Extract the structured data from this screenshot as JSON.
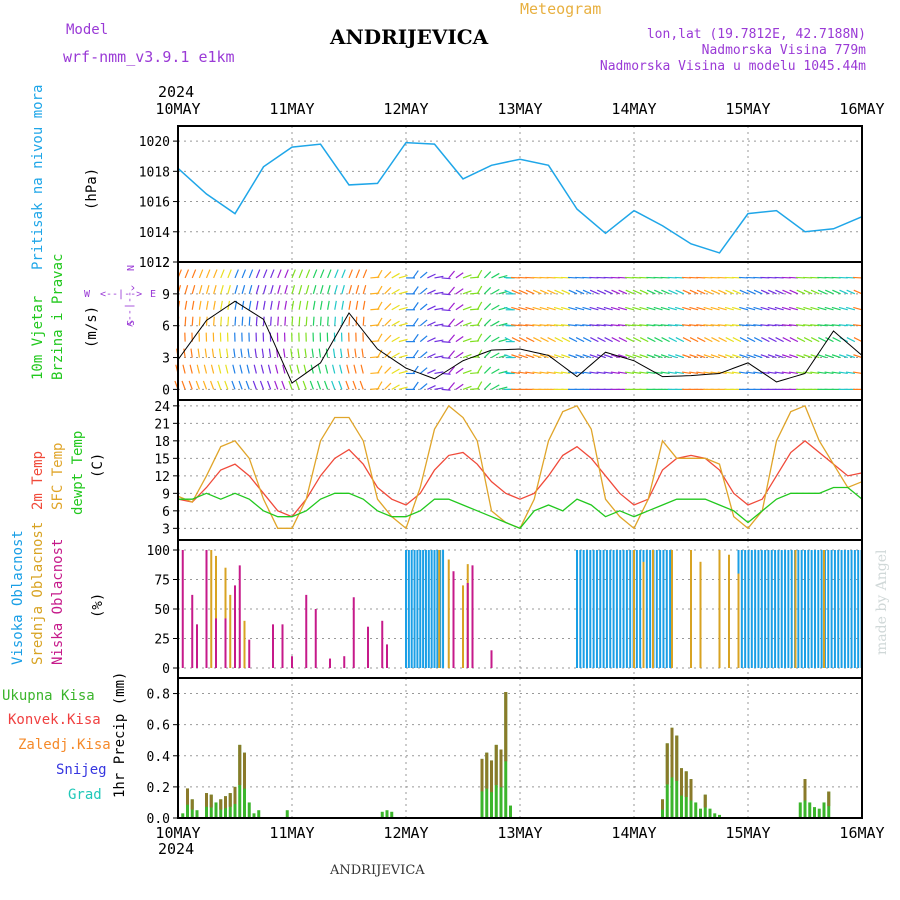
{
  "header": {
    "model_label": "Model",
    "model_name": "wrf-nmm_v3.9.1 e1km",
    "location": "ANDRIJEVICA",
    "product": "Meteogram",
    "lonlat": "lon,lat (19.7812E, 42.7188N)",
    "elevation": "Nadmorska Visina 779m",
    "model_elevation": "Nadmorska Visina u modelu 1045.44m",
    "footer_location": "ANDRIJEVICA",
    "signature": "made by Angel"
  },
  "x_axis": {
    "year": "2024",
    "days": [
      "10MAY",
      "11MAY",
      "12MAY",
      "13MAY",
      "14MAY",
      "15MAY",
      "16MAY"
    ]
  },
  "colors": {
    "pressure": "#1fa6e8",
    "wind_speed": "#000000",
    "wind_gust": "#ff2020",
    "temp_2m": "#f04a3a",
    "temp_sfc": "#e0a52a",
    "dewpoint": "#22c81e",
    "cloud_high": "#1a9fe6",
    "cloud_mid": "#d8a323",
    "cloud_low": "#c61a8a",
    "precip_total": "#3cb52c",
    "precip_conv": "#f04040",
    "precip_frozen": "#f58a2a",
    "snow": "#3636e0",
    "graupel": "#20c8b8"
  },
  "panels": {
    "pressure": {
      "labels": [
        "Pritisak na nivou mora"
      ],
      "unit": "(hPa)"
    },
    "wind": {
      "labels": [
        "10m Vjetar",
        "Brzina i Pravac"
      ],
      "unit": "(m/s)",
      "compass": [
        "W",
        "<--|-->",
        "E",
        "N",
        "^",
        "|",
        "v",
        "S"
      ]
    },
    "temp": {
      "labels": [
        "2m Temp",
        "SFC Temp",
        "dewpt Temp"
      ],
      "unit": "(C)"
    },
    "cloud": {
      "labels": [
        "Visoka Oblacnost",
        "Srednja Oblacnost",
        "Niska Oblacnost"
      ],
      "unit": "(%)"
    },
    "precip": {
      "labels": [
        "Ukupna Kisa",
        "Konvek.Kisa",
        "Zaledj.Kisa",
        "Snijeg",
        "Grad"
      ],
      "unit": "1hr Precip (mm)"
    }
  },
  "chart_data": [
    {
      "type": "line",
      "title": "",
      "ylabel": "Pritisak na nivou mora (hPa)",
      "ylim": [
        1012,
        1021
      ],
      "yticks": [
        1012,
        1014,
        1016,
        1018,
        1020
      ],
      "series": [
        {
          "name": "Pritisak na nivou mora",
          "x_hours": [
            0,
            6,
            12,
            18,
            24,
            30,
            36,
            42,
            48,
            54,
            60,
            66,
            72,
            78,
            84,
            90,
            96,
            102,
            108,
            114,
            120,
            126,
            132,
            138,
            144
          ],
          "values": [
            1018.2,
            1016.5,
            1015.2,
            1018.3,
            1019.6,
            1019.8,
            1017.1,
            1017.2,
            1019.9,
            1019.8,
            1017.5,
            1018.4,
            1018.8,
            1018.4,
            1015.5,
            1013.9,
            1015.4,
            1014.4,
            1013.2,
            1012.6,
            1015.2,
            1015.4,
            1014.0,
            1014.2,
            1015.0
          ]
        }
      ],
      "grid": true
    },
    {
      "type": "line",
      "title": "",
      "ylabel": "10m Vjetar Brzina i Pravac (m/s)",
      "ylim": [
        -1,
        12
      ],
      "yticks": [
        0,
        3,
        6,
        9,
        12
      ],
      "series": [
        {
          "name": "Brzina",
          "x_hours": [
            0,
            6,
            12,
            18,
            24,
            30,
            36,
            42,
            48,
            54,
            60,
            66,
            72,
            78,
            84,
            90,
            96,
            102,
            108,
            114,
            120,
            126,
            132,
            138,
            144
          ],
          "values": [
            2.8,
            6.5,
            8.3,
            6.6,
            0.6,
            2.5,
            7.2,
            3.8,
            2.0,
            1.0,
            2.7,
            3.7,
            3.8,
            3.2,
            1.2,
            3.5,
            2.7,
            1.2,
            1.3,
            1.5,
            2.5,
            0.7,
            1.5,
            5.5,
            3.2
          ]
        }
      ],
      "grid": true
    },
    {
      "type": "line",
      "title": "",
      "ylabel": "(C)",
      "ylim": [
        1,
        25
      ],
      "yticks": [
        3,
        6,
        9,
        12,
        15,
        18,
        21,
        24
      ],
      "x_hours": [
        0,
        3,
        6,
        9,
        12,
        15,
        18,
        21,
        24,
        27,
        30,
        33,
        36,
        39,
        42,
        45,
        48,
        51,
        54,
        57,
        60,
        63,
        66,
        69,
        72,
        75,
        78,
        81,
        84,
        87,
        90,
        93,
        96,
        99,
        102,
        105,
        108,
        111,
        114,
        117,
        120,
        123,
        126,
        129,
        132,
        135,
        138,
        141,
        144
      ],
      "series": [
        {
          "name": "2m Temp",
          "values": [
            8,
            7.5,
            10,
            13,
            14,
            12,
            9,
            6,
            5,
            8,
            12,
            15,
            16.5,
            14,
            10,
            8,
            7,
            9,
            13,
            15.5,
            16,
            14,
            11,
            9,
            8,
            9,
            12,
            15.5,
            17,
            15,
            12,
            9,
            7,
            8,
            13,
            15,
            15.5,
            15,
            13,
            9,
            7,
            8,
            12,
            16,
            18,
            16,
            14,
            12,
            12.5
          ]
        },
        {
          "name": "SFC Temp",
          "values": [
            8.5,
            7.5,
            12,
            17,
            18,
            15,
            8,
            3,
            3,
            8,
            18,
            22,
            22,
            18,
            8,
            5,
            3,
            10,
            20,
            24,
            22,
            18,
            6,
            4,
            3,
            8,
            18,
            23,
            24,
            20,
            8,
            5,
            3,
            8,
            18,
            15,
            15,
            15,
            14,
            5,
            3,
            6,
            18,
            23,
            24,
            18,
            14,
            10,
            11
          ]
        },
        {
          "name": "dewpt Temp",
          "values": [
            8,
            8,
            9,
            8,
            9,
            8,
            6,
            5,
            5,
            6,
            8,
            9,
            9,
            8,
            6,
            5,
            5,
            6,
            8,
            8,
            7,
            6,
            5,
            4,
            3,
            6,
            7,
            6,
            8,
            7,
            5,
            6,
            5,
            6,
            7,
            8,
            8,
            8,
            7,
            6,
            4,
            6,
            8,
            9,
            9,
            9,
            10,
            10,
            8
          ]
        }
      ],
      "grid": true
    },
    {
      "type": "bar",
      "title": "",
      "ylabel": "(%)",
      "ylim": [
        0,
        100
      ],
      "yticks": [
        0,
        25,
        50,
        75,
        100
      ],
      "series": [
        {
          "name": "Visoka Oblacnost",
          "note": "high cloud 100% approx 48-56h, 84-104h, 118-144h"
        },
        {
          "name": "Srednja Oblacnost",
          "note": "mid cloud intermittent 5-15h, 54-66h, 94-124h"
        },
        {
          "name": "Niska Oblacnost",
          "note": "low cloud scattered spikes 0-36h"
        }
      ],
      "grid": true
    },
    {
      "type": "bar",
      "title": "",
      "ylabel": "1hr Precip (mm)",
      "ylim": [
        0,
        0.9
      ],
      "yticks": [
        0,
        0.2,
        0.4,
        0.6,
        0.8
      ],
      "series": [
        {
          "name": "Ukupna Kisa",
          "x_hours": [
            1,
            2,
            3,
            4,
            6,
            7,
            8,
            9,
            10,
            11,
            12,
            13,
            14,
            15,
            16,
            17,
            23,
            43,
            44,
            45,
            64,
            65,
            66,
            67,
            68,
            69,
            70,
            102,
            103,
            104,
            105,
            106,
            107,
            108,
            109,
            110,
            111,
            112,
            113,
            114,
            131,
            132,
            133,
            134,
            135,
            136,
            137
          ],
          "values": [
            0.03,
            0.19,
            0.12,
            0.05,
            0.16,
            0.15,
            0.1,
            0.12,
            0.14,
            0.16,
            0.2,
            0.47,
            0.42,
            0.1,
            0.03,
            0.05,
            0.05,
            0.04,
            0.05,
            0.04,
            0.38,
            0.42,
            0.37,
            0.47,
            0.44,
            0.81,
            0.08,
            0.12,
            0.48,
            0.58,
            0.53,
            0.32,
            0.3,
            0.25,
            0.1,
            0.06,
            0.15,
            0.06,
            0.03,
            0.02,
            0.1,
            0.25,
            0.1,
            0.07,
            0.06,
            0.1,
            0.17
          ]
        },
        {
          "name": "Konvek.Kisa",
          "note": "convective fraction of total"
        }
      ],
      "grid": true
    }
  ]
}
